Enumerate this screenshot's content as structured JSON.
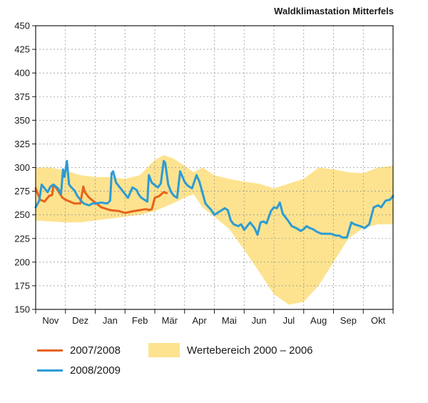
{
  "title": "Waldklimastation Mitterfels",
  "chart_data": {
    "type": "line",
    "title": "Waldklimastation Mitterfels",
    "xlabel": "",
    "ylabel": "",
    "ylim": [
      150,
      450
    ],
    "yticks": [
      150,
      175,
      200,
      225,
      250,
      275,
      300,
      325,
      350,
      375,
      400,
      425,
      450
    ],
    "x_range": [
      0,
      12
    ],
    "month_labels": [
      "Nov",
      "Dez",
      "Jan",
      "Feb",
      "Mär",
      "Apr",
      "Mai",
      "Jun",
      "Jul",
      "Aug",
      "Sep",
      "Okt"
    ],
    "grid": true,
    "legend_position": "bottom",
    "colors": {
      "range": "#fde38f",
      "series_2007": "#e8621a",
      "series_2008": "#2c9bd5"
    },
    "range_band": {
      "name": "Wertebereich 2000 – 2006",
      "x": [
        0,
        0.5,
        1,
        1.5,
        2,
        2.5,
        3,
        3.5,
        4,
        4.3,
        4.6,
        5,
        5.3,
        5.6,
        6,
        6.5,
        7,
        7.5,
        8,
        8.5,
        9,
        9.5,
        10,
        10.5,
        11,
        11.5,
        12
      ],
      "upper": [
        300,
        300,
        297,
        292,
        290,
        290,
        288,
        292,
        308,
        313,
        310,
        302,
        295,
        300,
        292,
        288,
        285,
        283,
        278,
        283,
        288,
        300,
        298,
        295,
        294,
        300,
        302
      ],
      "lower": [
        244,
        243,
        242,
        242,
        244,
        246,
        248,
        250,
        254,
        258,
        262,
        268,
        272,
        258,
        248,
        235,
        213,
        190,
        166,
        155,
        158,
        175,
        200,
        225,
        236,
        240,
        240
      ]
    },
    "series": [
      {
        "name": "2007/2008",
        "x": [
          0,
          0.15,
          0.3,
          0.45,
          0.55,
          0.6,
          0.7,
          0.8,
          0.9,
          1,
          1.3,
          1.5,
          1.6,
          1.65,
          1.7,
          1.8,
          2,
          2.2,
          2.5,
          2.8,
          3,
          3.3,
          3.5,
          3.7,
          3.8,
          3.9,
          4,
          4.15,
          4.3,
          4.4
        ],
        "values": [
          278,
          266,
          264,
          270,
          271,
          282,
          278,
          273,
          268,
          266,
          262,
          262,
          280,
          274,
          272,
          268,
          263,
          258,
          255,
          254,
          252,
          254,
          255,
          256,
          255,
          256,
          268,
          270,
          274,
          273
        ]
      },
      {
        "name": "2008/2009",
        "x": [
          0,
          0.12,
          0.2,
          0.3,
          0.4,
          0.5,
          0.6,
          0.75,
          0.85,
          0.92,
          0.97,
          1.05,
          1.12,
          1.2,
          1.3,
          1.4,
          1.5,
          1.55,
          1.62,
          1.7,
          1.8,
          1.9,
          2,
          2.2,
          2.4,
          2.5,
          2.55,
          2.6,
          2.7,
          2.85,
          2.95,
          3,
          3.1,
          3.25,
          3.4,
          3.45,
          3.55,
          3.65,
          3.75,
          3.8,
          3.9,
          4.1,
          4.2,
          4.3,
          4.35,
          4.45,
          4.55,
          4.65,
          4.75,
          4.85,
          5,
          5.1,
          5.25,
          5.4,
          5.5,
          5.7,
          5.9,
          6,
          6.2,
          6.35,
          6.45,
          6.55,
          6.65,
          6.8,
          6.9,
          7,
          7.2,
          7.35,
          7.45,
          7.55,
          7.65,
          7.75,
          7.9,
          8,
          8.1,
          8.2,
          8.3,
          8.45,
          8.6,
          8.75,
          8.9,
          9,
          9.1,
          9.2,
          9.3,
          9.45,
          9.6,
          9.75,
          9.9,
          10.1,
          10.2,
          10.3,
          10.45,
          10.6,
          10.7,
          10.9,
          11.05,
          11.2,
          11.35,
          11.5,
          11.6,
          11.75,
          11.9,
          12
        ],
        "values": [
          258,
          265,
          282,
          278,
          274,
          280,
          282,
          278,
          272,
          298,
          290,
          307,
          282,
          279,
          276,
          270,
          266,
          264,
          262,
          261,
          260,
          262,
          262,
          263,
          262,
          265,
          294,
          296,
          284,
          278,
          274,
          272,
          268,
          279,
          276,
          272,
          268,
          266,
          264,
          292,
          284,
          279,
          283,
          307,
          305,
          282,
          274,
          270,
          268,
          296,
          285,
          281,
          278,
          292,
          285,
          262,
          255,
          250,
          254,
          257,
          255,
          244,
          240,
          238,
          240,
          234,
          242,
          236,
          229,
          242,
          243,
          241,
          254,
          258,
          257,
          263,
          251,
          245,
          238,
          236,
          233,
          235,
          238,
          236,
          235,
          232,
          230,
          230,
          230,
          228,
          228,
          226,
          226,
          242,
          240,
          238,
          236,
          240,
          258,
          260,
          258,
          265,
          266,
          270
        ]
      }
    ]
  },
  "legend": {
    "series_2007_label": "2007/2008",
    "series_2008_label": "2008/2009",
    "range_label": "Wertebereich 2000 – 2006"
  }
}
